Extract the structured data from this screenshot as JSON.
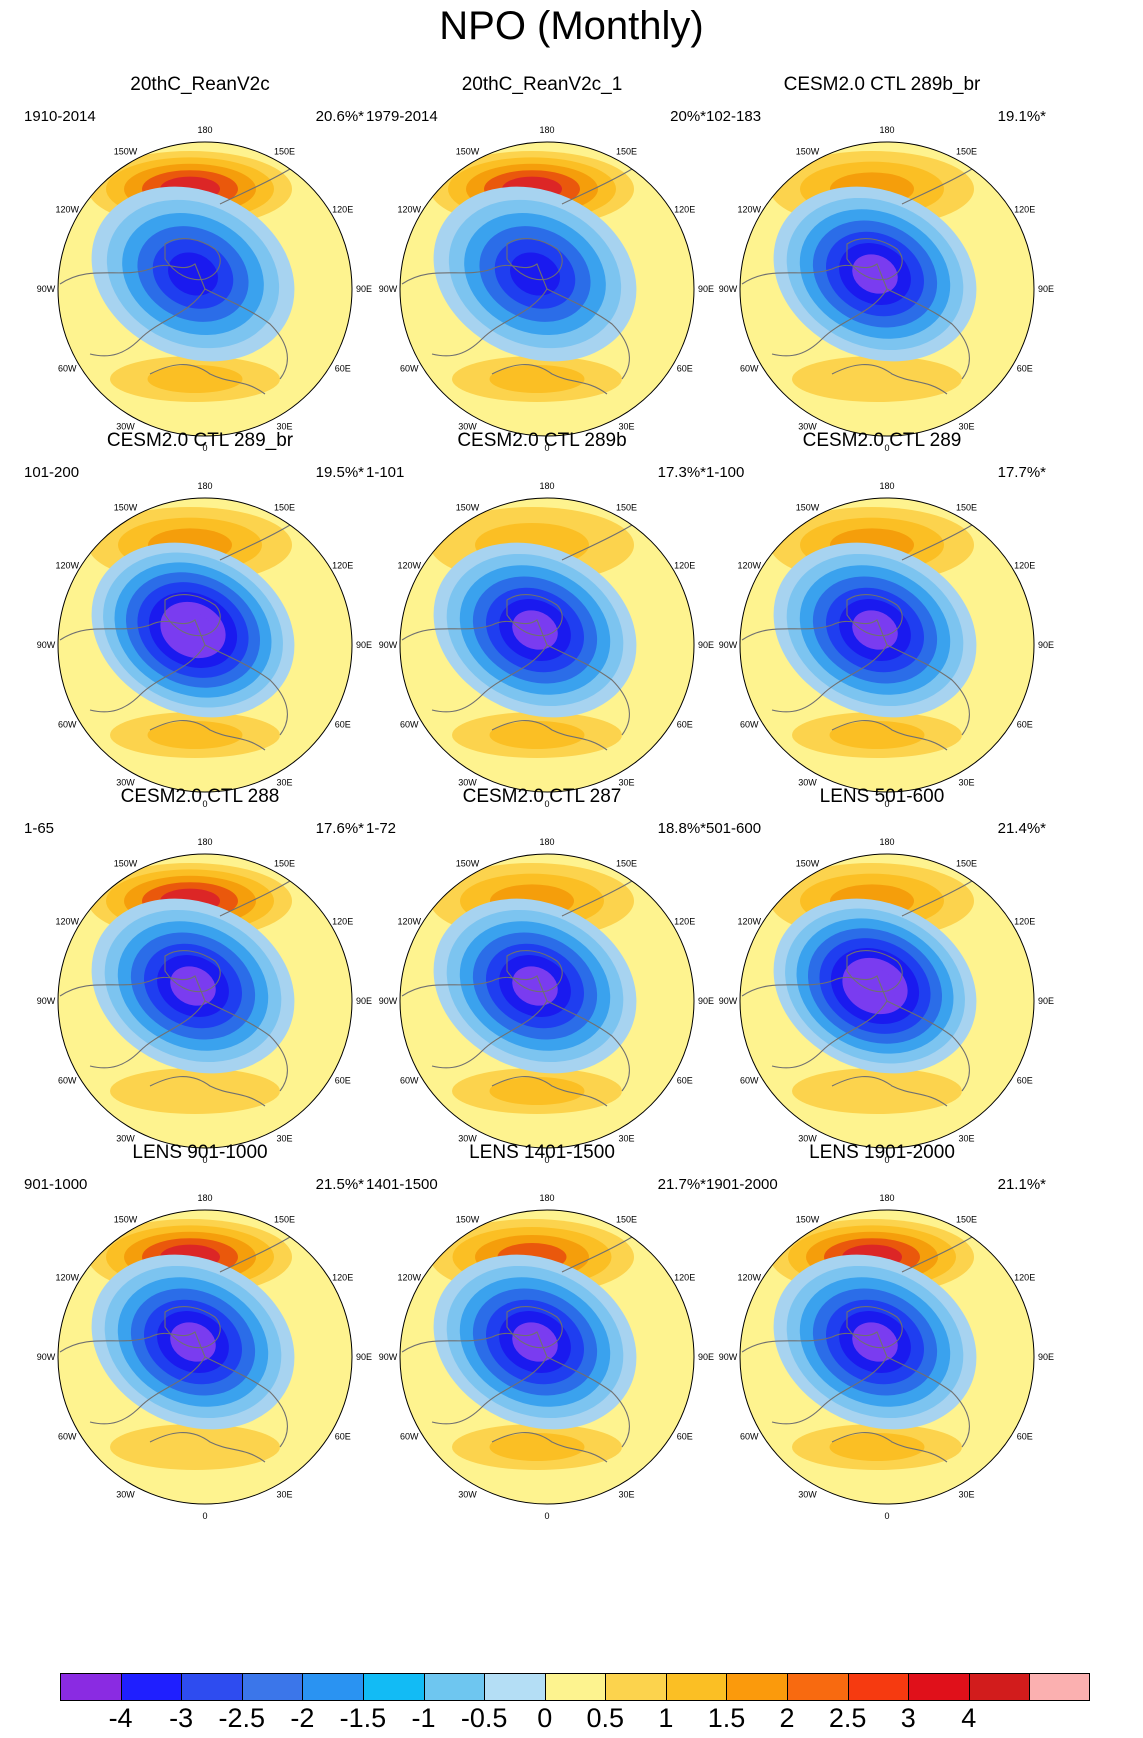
{
  "title": "NPO (Monthly)",
  "colors": {
    "ocean": "#fef38f",
    "pos_ramp": [
      "#fde68a",
      "#fcd34d",
      "#fbbf24",
      "#f59e0b",
      "#ea580c",
      "#dc2626",
      "#b91c1c"
    ],
    "neg_ramp": [
      "#a7d3f0",
      "#7cc4f0",
      "#3aa2ee",
      "#2b6de8",
      "#1f3ef0",
      "#1a1aef",
      "#7a3cf0"
    ],
    "coast": "#707070"
  },
  "lon_labels": [
    "180",
    "150E",
    "120E",
    "90E",
    "60E",
    "30E",
    "0",
    "30W",
    "60W",
    "90W",
    "120W",
    "150W"
  ],
  "panels": [
    {
      "title": "20thC_ReanV2c",
      "years": "1910-2014",
      "pct": "20.6%*",
      "pac_high": 2.5,
      "arc_low": -3.0,
      "atl_high": 0.8
    },
    {
      "title": "20thC_ReanV2c_1",
      "years": "1979-2014",
      "pct": "20%*",
      "pac_high": 2.7,
      "arc_low": -3.0,
      "atl_high": 0.8
    },
    {
      "title": "CESM2.0 CTL 289b_br",
      "years": "102-183",
      "pct": "19.1%*",
      "pac_high": 1.6,
      "arc_low": -3.6,
      "atl_high": 0.7
    },
    {
      "title": "CESM2.0 CTL 289_br",
      "years": "101-200",
      "pct": "19.5%*",
      "pac_high": 1.4,
      "arc_low": -3.8,
      "atl_high": 1.2
    },
    {
      "title": "CESM2.0 CTL 289b",
      "years": "1-101",
      "pct": "17.3%*",
      "pac_high": 1.2,
      "arc_low": -3.6,
      "atl_high": 0.8
    },
    {
      "title": "CESM2.0 CTL 289",
      "years": "1-100",
      "pct": "17.7%*",
      "pac_high": 1.4,
      "arc_low": -3.6,
      "atl_high": 0.8
    },
    {
      "title": "CESM2.0 CTL 288",
      "years": "1-65",
      "pct": "17.6%*",
      "pac_high": 2.3,
      "arc_low": -3.4,
      "atl_high": 0.7
    },
    {
      "title": "CESM2.0 CTL 287",
      "years": "1-72",
      "pct": "18.8%*",
      "pac_high": 1.3,
      "arc_low": -3.7,
      "atl_high": 0.8
    },
    {
      "title": "LENS 501-600",
      "years": "501-600",
      "pct": "21.4%*",
      "pac_high": 1.6,
      "arc_low": -3.8,
      "atl_high": 0.7
    },
    {
      "title": "LENS 901-1000",
      "years": "901-1000",
      "pct": "21.5%*",
      "pac_high": 2.6,
      "arc_low": -3.6,
      "atl_high": 0.7
    },
    {
      "title": "LENS 1401-1500",
      "years": "1401-1500",
      "pct": "21.7%*",
      "pac_high": 2.2,
      "arc_low": -3.7,
      "atl_high": 1.2
    },
    {
      "title": "LENS 1901-2000",
      "years": "1901-2000",
      "pct": "21.1%*",
      "pac_high": 2.6,
      "arc_low": -3.6,
      "atl_high": 0.8
    }
  ],
  "colorbar": {
    "colors": [
      "#8a2be2",
      "#1f1fff",
      "#2e4cf0",
      "#3b76ea",
      "#2a93f2",
      "#12bbf5",
      "#6ec6f0",
      "#b4def5",
      "#fdf38f",
      "#fcd34d",
      "#fbbf24",
      "#fb9a0c",
      "#f86a10",
      "#f63a10",
      "#e0101a",
      "#d21c1c",
      "#fbb0b0"
    ],
    "ticks": [
      "-4",
      "-3",
      "-2.5",
      "-2",
      "-1.5",
      "-1",
      "-0.5",
      "0",
      "0.5",
      "1",
      "1.5",
      "2",
      "2.5",
      "3",
      "4"
    ]
  }
}
